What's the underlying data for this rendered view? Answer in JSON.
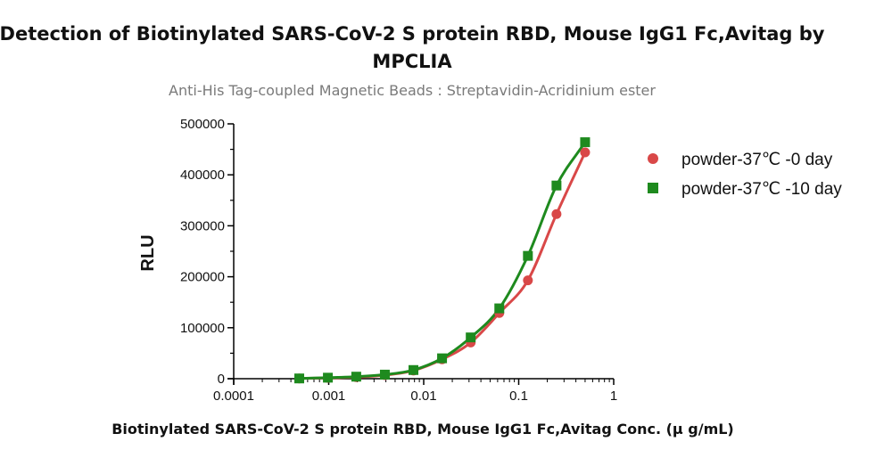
{
  "chart_data": {
    "type": "scatter",
    "title_line1": "Detection of Biotinylated SARS-CoV-2 S protein RBD, Mouse IgG1 Fc,Avitag by",
    "title_line2": "MPCLIA",
    "subtitle": "Anti-His Tag-coupled Magnetic Beads : Streptavidin-Acridinium ester",
    "xlabel": "Biotinylated SARS-CoV-2 S protein RBD, Mouse IgG1 Fc,Avitag Conc. (μ g/mL)",
    "ylabel": "RLU",
    "x_scale": "log",
    "xlim": [
      0.0001,
      1
    ],
    "ylim": [
      0,
      500000
    ],
    "x_ticks": [
      0.0001,
      0.001,
      0.01,
      0.1,
      1
    ],
    "x_tick_labels": [
      "0.0001",
      "0.001",
      "0.01",
      "0.1",
      "1"
    ],
    "y_ticks": [
      0,
      100000,
      200000,
      300000,
      400000,
      500000
    ],
    "y_tick_labels": [
      "0",
      "100000",
      "200000",
      "300000",
      "400000",
      "500000"
    ],
    "grid": false,
    "legend_position": "right",
    "series": [
      {
        "name": "powder-37℃ -0 day",
        "marker": "circle",
        "color": "#d94848",
        "x": [
          0.00049,
          0.00098,
          0.00195,
          0.0039,
          0.0078,
          0.0156,
          0.03125,
          0.0625,
          0.125,
          0.25,
          0.5
        ],
        "y": [
          500,
          1500,
          3000,
          7000,
          16000,
          38000,
          71000,
          129000,
          193000,
          323000,
          444000
        ]
      },
      {
        "name": "powder-37℃ -10 day",
        "marker": "square",
        "color": "#1e8a1e",
        "x": [
          0.00049,
          0.00098,
          0.00195,
          0.0039,
          0.0078,
          0.0156,
          0.03125,
          0.0625,
          0.125,
          0.25,
          0.5
        ],
        "y": [
          500,
          2000,
          4000,
          8000,
          17000,
          40000,
          81000,
          138000,
          241000,
          379000,
          464000
        ]
      }
    ]
  }
}
